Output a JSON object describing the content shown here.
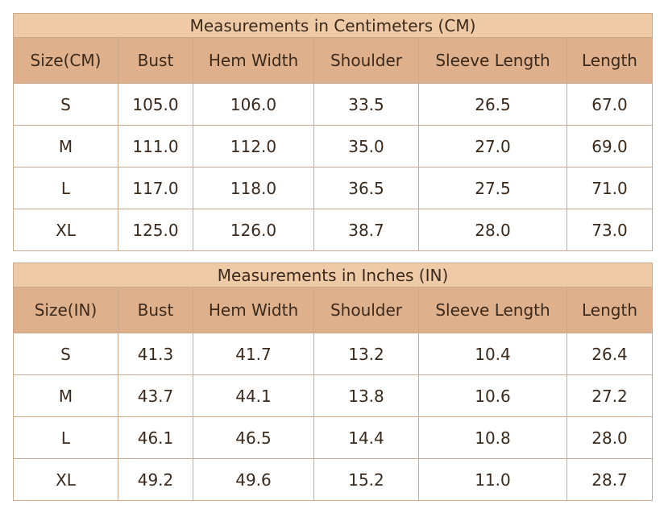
{
  "tables": [
    {
      "title": "Measurements in Centimeters (CM)",
      "headers": [
        "Size(CM)",
        "Bust",
        "Hem Width",
        "Shoulder",
        "Sleeve Length",
        "Length"
      ],
      "rows": [
        [
          "S",
          "105.0",
          "106.0",
          "33.5",
          "26.5",
          "67.0"
        ],
        [
          "M",
          "111.0",
          "112.0",
          "35.0",
          "27.0",
          "69.0"
        ],
        [
          "L",
          "117.0",
          "118.0",
          "36.5",
          "27.5",
          "71.0"
        ],
        [
          "XL",
          "125.0",
          "126.0",
          "38.7",
          "28.0",
          "73.0"
        ]
      ]
    },
    {
      "title": "Measurements in Inches (IN)",
      "headers": [
        "Size(IN)",
        "Bust",
        "Hem Width",
        "Shoulder",
        "Sleeve Length",
        "Length"
      ],
      "rows": [
        [
          "S",
          "41.3",
          "41.7",
          "13.2",
          "10.4",
          "26.4"
        ],
        [
          "M",
          "43.7",
          "44.1",
          "13.8",
          "10.6",
          "27.2"
        ],
        [
          "L",
          "46.1",
          "46.5",
          "14.4",
          "10.8",
          "28.0"
        ],
        [
          "XL",
          "49.2",
          "49.6",
          "15.2",
          "11.0",
          "28.7"
        ]
      ]
    }
  ]
}
